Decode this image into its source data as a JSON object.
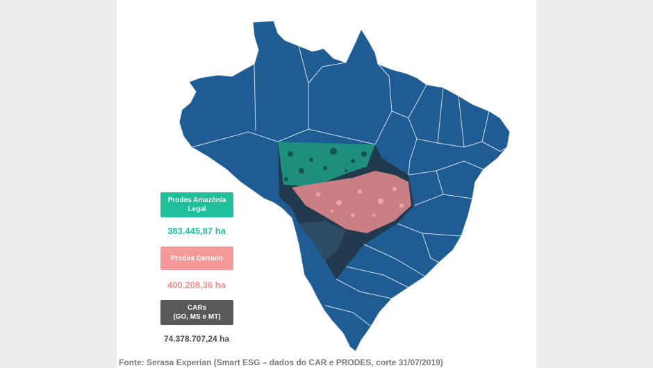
{
  "legend": {
    "amazonia": {
      "line1": "Prodes Amazônia",
      "line2": "Legal",
      "value": "383.445,87 ha",
      "color": "#1fbf9c"
    },
    "cerrado": {
      "label": "Prodes Cerrado",
      "value": "400.208,36 ha",
      "color": "#f59a98"
    },
    "cars": {
      "line1": "CARs",
      "line2": "(GO, MS e MT)",
      "value": "74.378.707,24 ha",
      "color": "#5b5858"
    }
  },
  "map": {
    "fill_color": "#1f5c94",
    "border_color": "#e8eef5"
  },
  "source": "Fonte: Serasa Experian (Smart ESG – dados do CAR e PRODES, corte 31/07/2019)"
}
